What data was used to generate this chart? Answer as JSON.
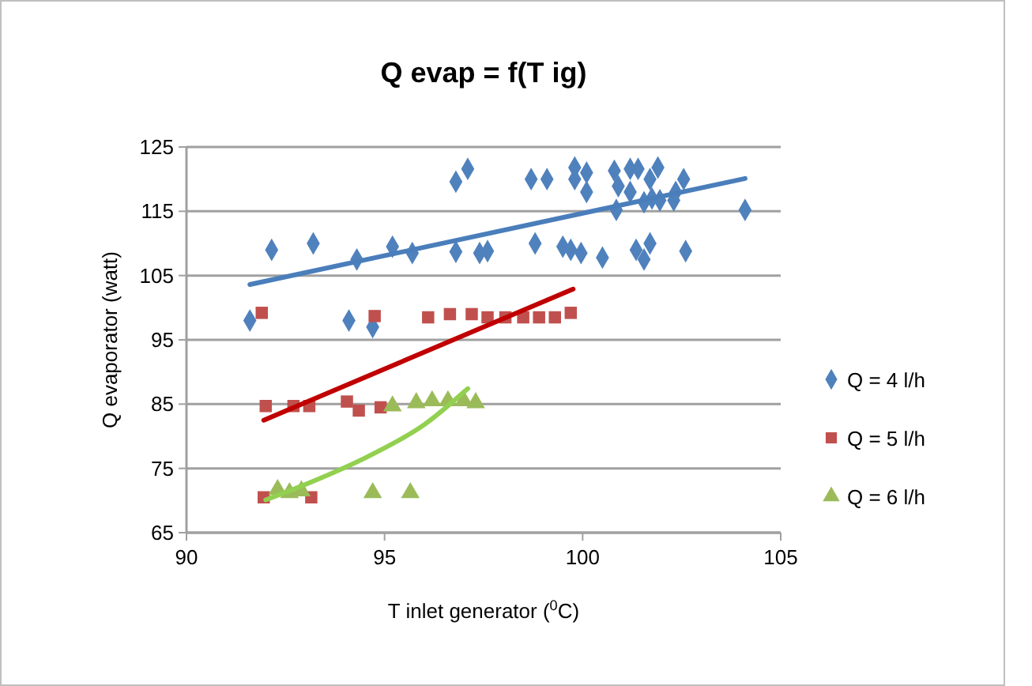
{
  "chart_data": {
    "type": "scatter",
    "title": "Q evap = f(T ig)",
    "xlabel": "T inlet generator ($^{0}$C)",
    "ylabel": "Q evaporator (watt)",
    "xlim": [
      90,
      105
    ],
    "xticks": [
      90,
      95,
      100,
      105
    ],
    "ylim": [
      65,
      125
    ],
    "yticks": [
      65,
      75,
      85,
      95,
      105,
      115,
      125
    ],
    "grid": "y",
    "legend": "right",
    "series": [
      {
        "name": "Q = 4 l/h",
        "color": "#4f81bd",
        "marker": "diamond",
        "x": [
          92.15,
          93.2,
          94.3,
          95.2,
          95.7,
          96.8,
          97.4,
          96.8,
          97.1,
          91.6,
          94.1,
          94.7,
          98.7,
          99.1,
          99.8,
          99.8,
          100.1,
          100.1,
          100.8,
          100.9,
          101.2,
          101.4,
          101.2,
          101.7,
          101.9,
          101.75,
          101.95,
          102.3,
          102.35,
          102.55,
          100.85,
          104.1,
          101.55,
          97.6,
          98.8,
          99.5,
          99.7,
          99.96,
          100.5,
          101.35,
          101.55,
          101.7,
          102.6
        ],
        "values": [
          109,
          110,
          107.5,
          109.5,
          108.5,
          108.7,
          108.5,
          119.6,
          121.6,
          98,
          98,
          97,
          120,
          120,
          121.8,
          120,
          121,
          118,
          121.3,
          118.9,
          121.6,
          121.6,
          118,
          120,
          121.8,
          117,
          116.7,
          116.7,
          118,
          120,
          115.2,
          115.2,
          116.4,
          108.8,
          110,
          109.5,
          109,
          108.5,
          107.8,
          109,
          107.5,
          110,
          108.8
        ]
      },
      {
        "name": "Q = 5 l/h",
        "color": "#c0504d",
        "marker": "square",
        "x": [
          91.9,
          94.75,
          96.1,
          96.65,
          97.2,
          97.6,
          98.05,
          98.5,
          98.9,
          99.3,
          99.7,
          92,
          92.7,
          93.1,
          94.05,
          94.35,
          94.9,
          91.95,
          93.15
        ],
        "values": [
          99.2,
          98.7,
          98.5,
          99,
          99,
          98.5,
          98.5,
          98.5,
          98.5,
          98.5,
          99.2,
          84.7,
          84.7,
          84.7,
          85.4,
          84,
          84.5,
          70.5,
          70.5
        ]
      },
      {
        "name": "Q = 6 l/h",
        "color": "#9bbb59",
        "marker": "triangle",
        "x": [
          92.3,
          92.6,
          92.9,
          94.7,
          95.65,
          95.2,
          95.8,
          96.2,
          96.6,
          97,
          97.3
        ],
        "values": [
          71.7,
          71.2,
          71.5,
          71.2,
          71.2,
          84.7,
          85.2,
          85.5,
          85.5,
          85.5,
          85.2
        ]
      },
      {
        "type": "line",
        "color": "#4a7ebb",
        "marker": "none",
        "x": [
          91.6,
          104.1
        ],
        "values": [
          103.6,
          120.1
        ]
      },
      {
        "type": "line",
        "color": "#c00000",
        "marker": "none",
        "x": [
          91.95,
          99.76
        ],
        "values": [
          82.5,
          102.9
        ]
      },
      {
        "type": "line",
        "color": "#92d050",
        "marker": "none",
        "x": [
          92,
          93,
          94.66,
          96,
          97.1
        ],
        "values": [
          70.1,
          72.5,
          77.1,
          81.8,
          87.4
        ]
      }
    ]
  }
}
